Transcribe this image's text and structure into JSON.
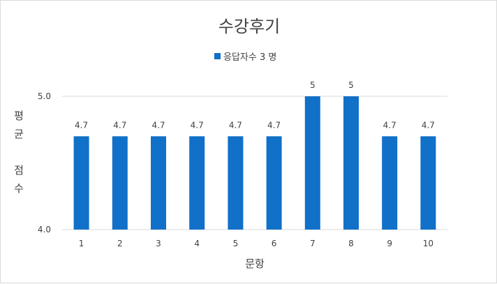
{
  "chart_data": {
    "type": "bar",
    "title": "수강후기",
    "categories": [
      "1",
      "2",
      "3",
      "4",
      "5",
      "6",
      "7",
      "8",
      "9",
      "10"
    ],
    "series": [
      {
        "name": "응답자수 3 명",
        "values": [
          4.7,
          4.7,
          4.7,
          4.7,
          4.7,
          4.7,
          5,
          5,
          4.7,
          4.7
        ],
        "data_labels": [
          "4.7",
          "4.7",
          "4.7",
          "4.7",
          "4.7",
          "4.7",
          "5",
          "5",
          "4.7",
          "4.7"
        ]
      }
    ],
    "xlabel": "문항",
    "ylabel": "평균 점수",
    "ylabel_lines": [
      "평",
      "균",
      "",
      "점",
      "수"
    ],
    "ylim": [
      4.0,
      5.0
    ],
    "yticks": [
      "4.0",
      "5.0"
    ],
    "grid": true,
    "legend_position": "top",
    "colors": {
      "bar": "#1170C8",
      "grid": "#d9d9d9",
      "text": "#404040"
    }
  }
}
